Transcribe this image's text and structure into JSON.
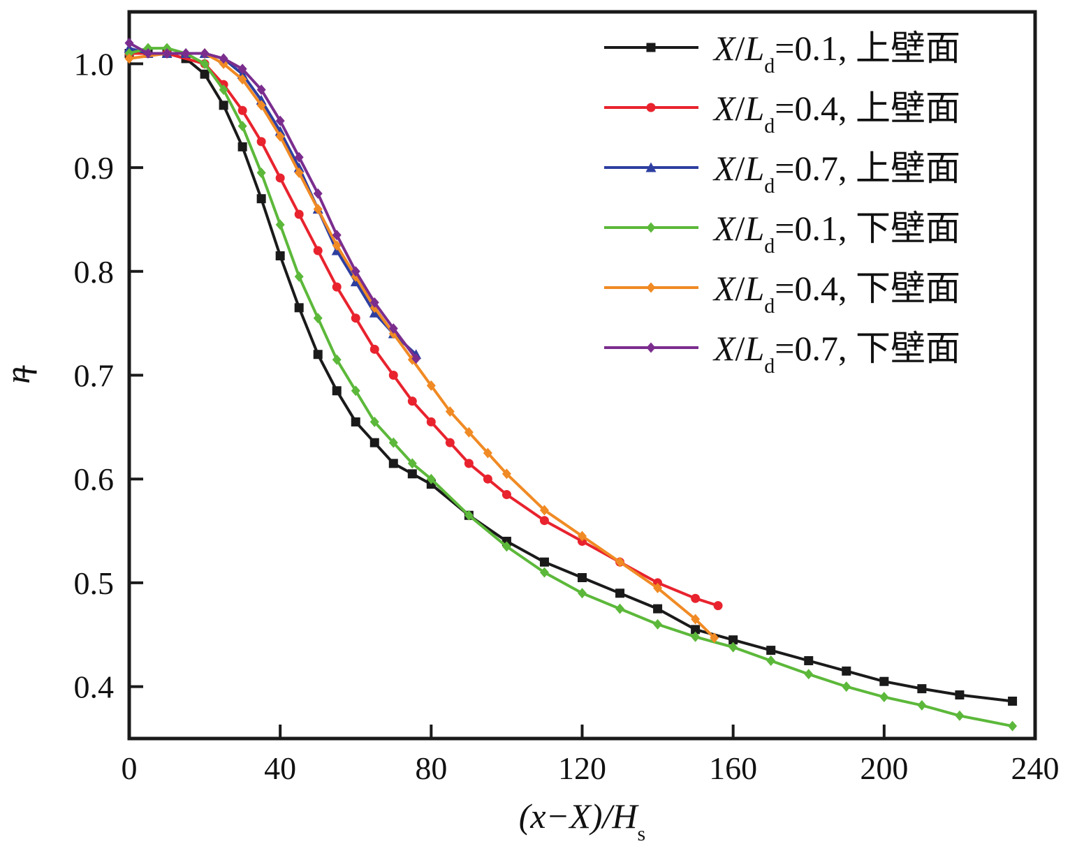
{
  "chart_data": {
    "type": "line",
    "xlabel": "(x−X)/H",
    "xlabel_sub": "s",
    "ylabel": "η",
    "xlim": [
      0,
      240
    ],
    "ylim": [
      0.35,
      1.05
    ],
    "xticks": [
      0,
      40,
      80,
      120,
      160,
      200,
      240
    ],
    "yticks": [
      0.4,
      0.5,
      0.6,
      0.7,
      0.8,
      0.9,
      1.0
    ],
    "legend_position": "top-right",
    "series": [
      {
        "name": "X/Ld=0.1, 上壁面",
        "legend": {
          "x": "X",
          "slash": "/",
          "L": "L",
          "sub": "d",
          "rest": "=0.1, 上壁面"
        },
        "color": "#1a1a1a",
        "marker": "square",
        "points": [
          [
            0,
            1.01
          ],
          [
            5,
            1.01
          ],
          [
            10,
            1.01
          ],
          [
            15,
            1.005
          ],
          [
            20,
            0.99
          ],
          [
            25,
            0.96
          ],
          [
            30,
            0.92
          ],
          [
            35,
            0.87
          ],
          [
            40,
            0.815
          ],
          [
            45,
            0.765
          ],
          [
            50,
            0.72
          ],
          [
            55,
            0.685
          ],
          [
            60,
            0.655
          ],
          [
            65,
            0.635
          ],
          [
            70,
            0.615
          ],
          [
            75,
            0.605
          ],
          [
            80,
            0.595
          ],
          [
            90,
            0.565
          ],
          [
            100,
            0.54
          ],
          [
            110,
            0.52
          ],
          [
            120,
            0.505
          ],
          [
            130,
            0.49
          ],
          [
            140,
            0.475
          ],
          [
            150,
            0.455
          ],
          [
            160,
            0.445
          ],
          [
            170,
            0.435
          ],
          [
            180,
            0.425
          ],
          [
            190,
            0.415
          ],
          [
            200,
            0.405
          ],
          [
            210,
            0.398
          ],
          [
            220,
            0.392
          ],
          [
            234,
            0.386
          ]
        ]
      },
      {
        "name": "X/Ld=0.4, 上壁面",
        "legend": {
          "x": "X",
          "slash": "/",
          "L": "L",
          "sub": "d",
          "rest": "=0.4, 上壁面"
        },
        "color": "#e8232e",
        "marker": "circle",
        "points": [
          [
            0,
            1.01
          ],
          [
            10,
            1.01
          ],
          [
            20,
            1.0
          ],
          [
            25,
            0.98
          ],
          [
            30,
            0.955
          ],
          [
            35,
            0.925
          ],
          [
            40,
            0.89
          ],
          [
            45,
            0.855
          ],
          [
            50,
            0.82
          ],
          [
            55,
            0.785
          ],
          [
            60,
            0.755
          ],
          [
            65,
            0.725
          ],
          [
            70,
            0.7
          ],
          [
            75,
            0.675
          ],
          [
            80,
            0.655
          ],
          [
            85,
            0.635
          ],
          [
            90,
            0.615
          ],
          [
            95,
            0.6
          ],
          [
            100,
            0.585
          ],
          [
            110,
            0.56
          ],
          [
            120,
            0.54
          ],
          [
            130,
            0.52
          ],
          [
            140,
            0.5
          ],
          [
            150,
            0.485
          ],
          [
            156,
            0.478
          ]
        ]
      },
      {
        "name": "X/Ld=0.7, 上壁面",
        "legend": {
          "x": "X",
          "slash": "/",
          "L": "L",
          "sub": "d",
          "rest": "=0.7, 上壁面"
        },
        "color": "#2e3fa0",
        "marker": "triangle",
        "points": [
          [
            0,
            1.015
          ],
          [
            5,
            1.01
          ],
          [
            10,
            1.01
          ],
          [
            15,
            1.01
          ],
          [
            20,
            1.01
          ],
          [
            25,
            1.005
          ],
          [
            30,
            0.99
          ],
          [
            35,
            0.965
          ],
          [
            40,
            0.935
          ],
          [
            45,
            0.9
          ],
          [
            50,
            0.86
          ],
          [
            55,
            0.82
          ],
          [
            60,
            0.79
          ],
          [
            65,
            0.76
          ],
          [
            70,
            0.74
          ],
          [
            76,
            0.72
          ]
        ]
      },
      {
        "name": "X/Ld=0.1, 下壁面",
        "legend": {
          "x": "X",
          "slash": "/",
          "L": "L",
          "sub": "d",
          "rest": "=0.1, 下壁面"
        },
        "color": "#5cb83a",
        "marker": "diamond",
        "points": [
          [
            0,
            1.01
          ],
          [
            5,
            1.015
          ],
          [
            10,
            1.015
          ],
          [
            15,
            1.01
          ],
          [
            20,
            1.0
          ],
          [
            25,
            0.975
          ],
          [
            30,
            0.94
          ],
          [
            35,
            0.895
          ],
          [
            40,
            0.845
          ],
          [
            45,
            0.795
          ],
          [
            50,
            0.755
          ],
          [
            55,
            0.715
          ],
          [
            60,
            0.685
          ],
          [
            65,
            0.655
          ],
          [
            70,
            0.635
          ],
          [
            75,
            0.615
          ],
          [
            80,
            0.6
          ],
          [
            90,
            0.565
          ],
          [
            100,
            0.535
          ],
          [
            110,
            0.51
          ],
          [
            120,
            0.49
          ],
          [
            130,
            0.475
          ],
          [
            140,
            0.46
          ],
          [
            150,
            0.448
          ],
          [
            160,
            0.438
          ],
          [
            170,
            0.425
          ],
          [
            180,
            0.412
          ],
          [
            190,
            0.4
          ],
          [
            200,
            0.39
          ],
          [
            210,
            0.382
          ],
          [
            220,
            0.372
          ],
          [
            234,
            0.362
          ]
        ]
      },
      {
        "name": "X/Ld=0.4, 下壁面",
        "legend": {
          "x": "X",
          "slash": "/",
          "L": "L",
          "sub": "d",
          "rest": "=0.4, 下壁面"
        },
        "color": "#f08a24",
        "marker": "diamond",
        "points": [
          [
            0,
            1.005
          ],
          [
            10,
            1.01
          ],
          [
            20,
            1.01
          ],
          [
            25,
            1.0
          ],
          [
            30,
            0.985
          ],
          [
            35,
            0.96
          ],
          [
            40,
            0.93
          ],
          [
            45,
            0.895
          ],
          [
            50,
            0.86
          ],
          [
            55,
            0.825
          ],
          [
            60,
            0.795
          ],
          [
            65,
            0.765
          ],
          [
            70,
            0.74
          ],
          [
            75,
            0.715
          ],
          [
            80,
            0.69
          ],
          [
            85,
            0.665
          ],
          [
            90,
            0.645
          ],
          [
            95,
            0.625
          ],
          [
            100,
            0.605
          ],
          [
            110,
            0.57
          ],
          [
            120,
            0.545
          ],
          [
            130,
            0.52
          ],
          [
            140,
            0.495
          ],
          [
            150,
            0.465
          ],
          [
            155,
            0.447
          ]
        ]
      },
      {
        "name": "X/Ld=0.7, 下壁面",
        "legend": {
          "x": "X",
          "slash": "/",
          "L": "L",
          "sub": "d",
          "rest": "=0.7, 下壁面"
        },
        "color": "#7b2d8e",
        "marker": "diamond",
        "points": [
          [
            0,
            1.02
          ],
          [
            5,
            1.01
          ],
          [
            10,
            1.01
          ],
          [
            15,
            1.01
          ],
          [
            20,
            1.01
          ],
          [
            25,
            1.005
          ],
          [
            30,
            0.995
          ],
          [
            35,
            0.975
          ],
          [
            40,
            0.945
          ],
          [
            45,
            0.91
          ],
          [
            50,
            0.875
          ],
          [
            55,
            0.835
          ],
          [
            60,
            0.8
          ],
          [
            65,
            0.77
          ],
          [
            70,
            0.745
          ],
          [
            76,
            0.716
          ]
        ]
      }
    ]
  }
}
